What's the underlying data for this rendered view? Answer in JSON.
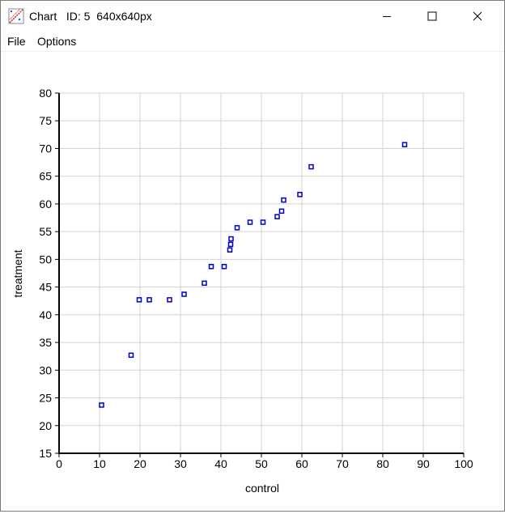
{
  "window": {
    "title": "Chart   ID: 5  640x640px",
    "icon": "chart-icon"
  },
  "menu": {
    "items": [
      "File",
      "Options"
    ]
  },
  "chart_data": {
    "type": "scatter",
    "xlabel": "control",
    "ylabel": "treatment",
    "xlim": [
      0,
      100
    ],
    "ylim": [
      15,
      80
    ],
    "xticks": [
      0,
      10,
      20,
      30,
      40,
      50,
      60,
      70,
      80,
      90,
      100
    ],
    "yticks": [
      15,
      20,
      25,
      30,
      35,
      40,
      45,
      50,
      55,
      60,
      65,
      70,
      75,
      80
    ],
    "grid": true,
    "marker": "hollow-square",
    "color": "#0000cc",
    "points": [
      {
        "x": 10.5,
        "y": 23.7
      },
      {
        "x": 17.8,
        "y": 32.7
      },
      {
        "x": 19.8,
        "y": 42.7
      },
      {
        "x": 22.3,
        "y": 42.7
      },
      {
        "x": 27.3,
        "y": 42.7
      },
      {
        "x": 30.9,
        "y": 43.7
      },
      {
        "x": 35.9,
        "y": 45.7
      },
      {
        "x": 37.6,
        "y": 48.7
      },
      {
        "x": 40.8,
        "y": 48.7
      },
      {
        "x": 42.2,
        "y": 51.7
      },
      {
        "x": 42.4,
        "y": 52.7
      },
      {
        "x": 42.5,
        "y": 53.7
      },
      {
        "x": 44.0,
        "y": 55.7
      },
      {
        "x": 47.2,
        "y": 56.7
      },
      {
        "x": 50.4,
        "y": 56.7
      },
      {
        "x": 53.9,
        "y": 57.7
      },
      {
        "x": 55.0,
        "y": 58.7
      },
      {
        "x": 55.5,
        "y": 60.7
      },
      {
        "x": 59.5,
        "y": 61.7
      },
      {
        "x": 62.3,
        "y": 66.7
      },
      {
        "x": 85.4,
        "y": 70.7
      }
    ]
  }
}
